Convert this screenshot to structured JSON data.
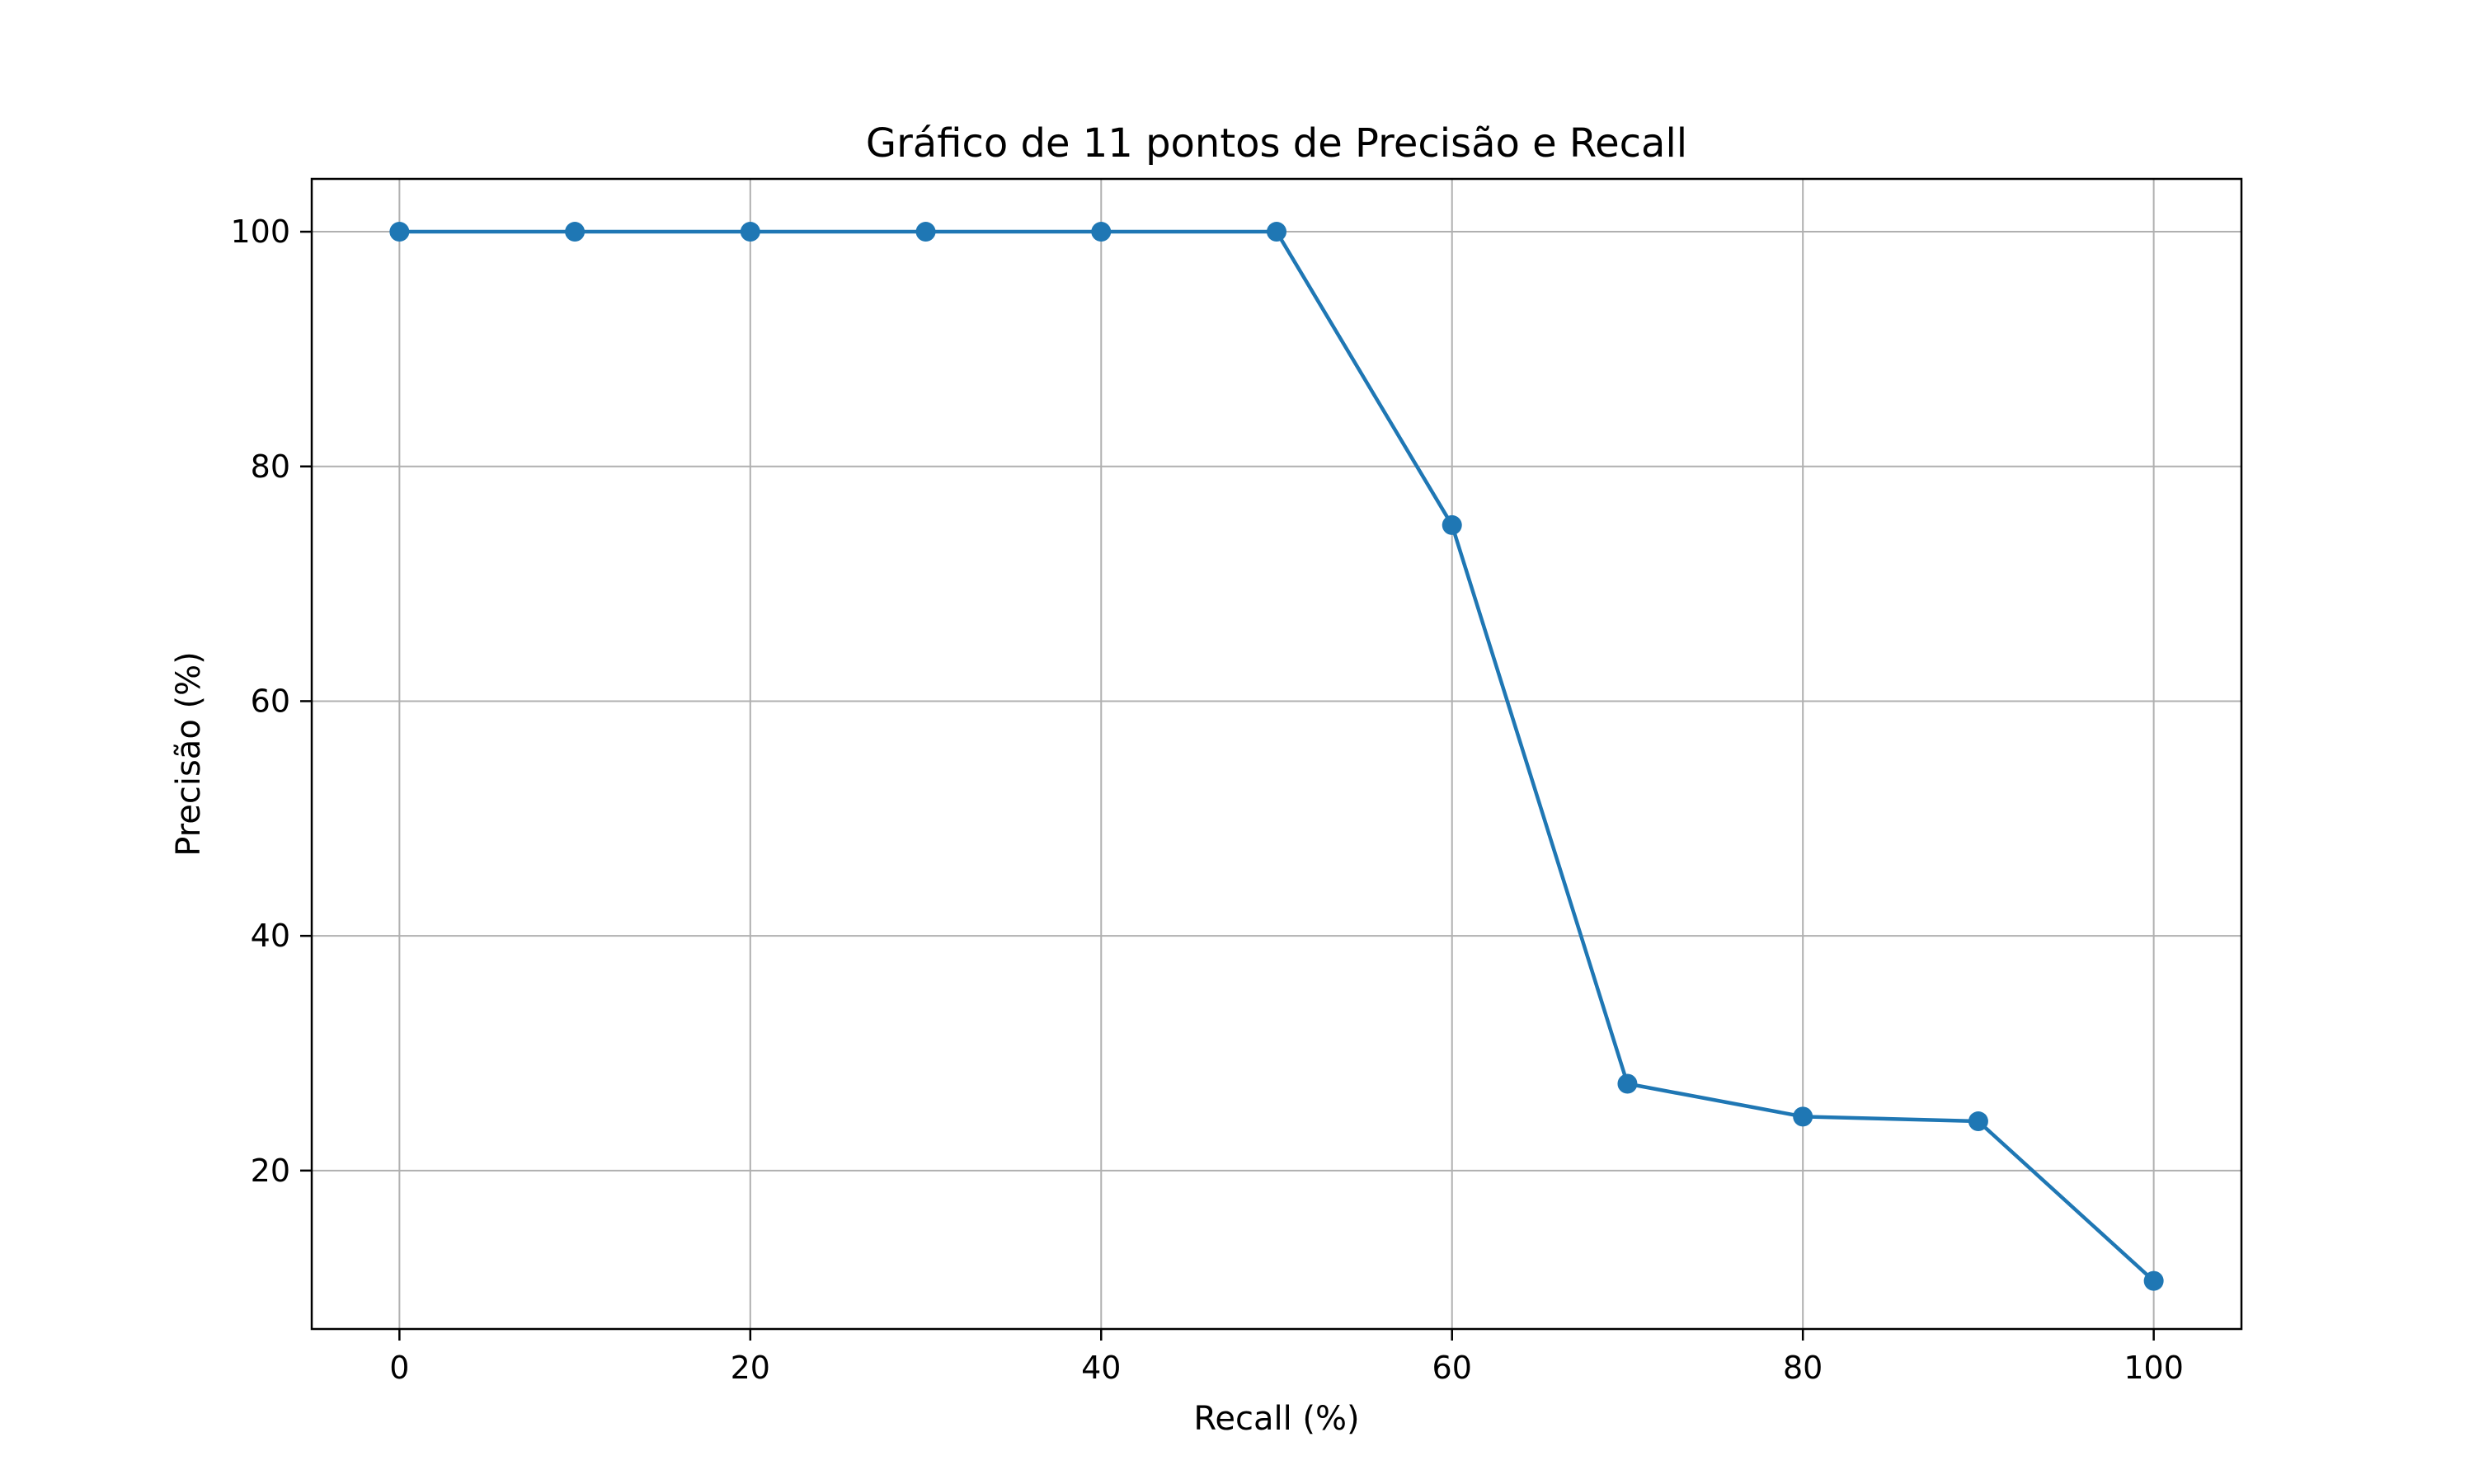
{
  "chart_data": {
    "type": "line",
    "title": "Gráfico de 11 pontos de Precisão e Recall",
    "xlabel": "Recall (%)",
    "ylabel": "Precisão (%)",
    "x": [
      0,
      10,
      20,
      30,
      40,
      50,
      60,
      70,
      80,
      90,
      100
    ],
    "series": [
      {
        "values": [
          100,
          100,
          100,
          100,
          100,
          100,
          75,
          27.4,
          24.6,
          24.2,
          10.6
        ],
        "color": "#1f77b4",
        "marker": "circle"
      }
    ],
    "xlim": [
      -5,
      105
    ],
    "ylim": [
      6.5,
      104.5
    ],
    "xticks": [
      0,
      20,
      40,
      60,
      80,
      100
    ],
    "yticks": [
      20,
      40,
      60,
      80,
      100
    ],
    "xtick_labels": [
      "0",
      "20",
      "40",
      "60",
      "80",
      "100"
    ],
    "ytick_labels": [
      "20",
      "40",
      "60",
      "80",
      "100"
    ],
    "grid": true,
    "grid_color": "#b0b0b0",
    "axes_color": "#000000"
  }
}
